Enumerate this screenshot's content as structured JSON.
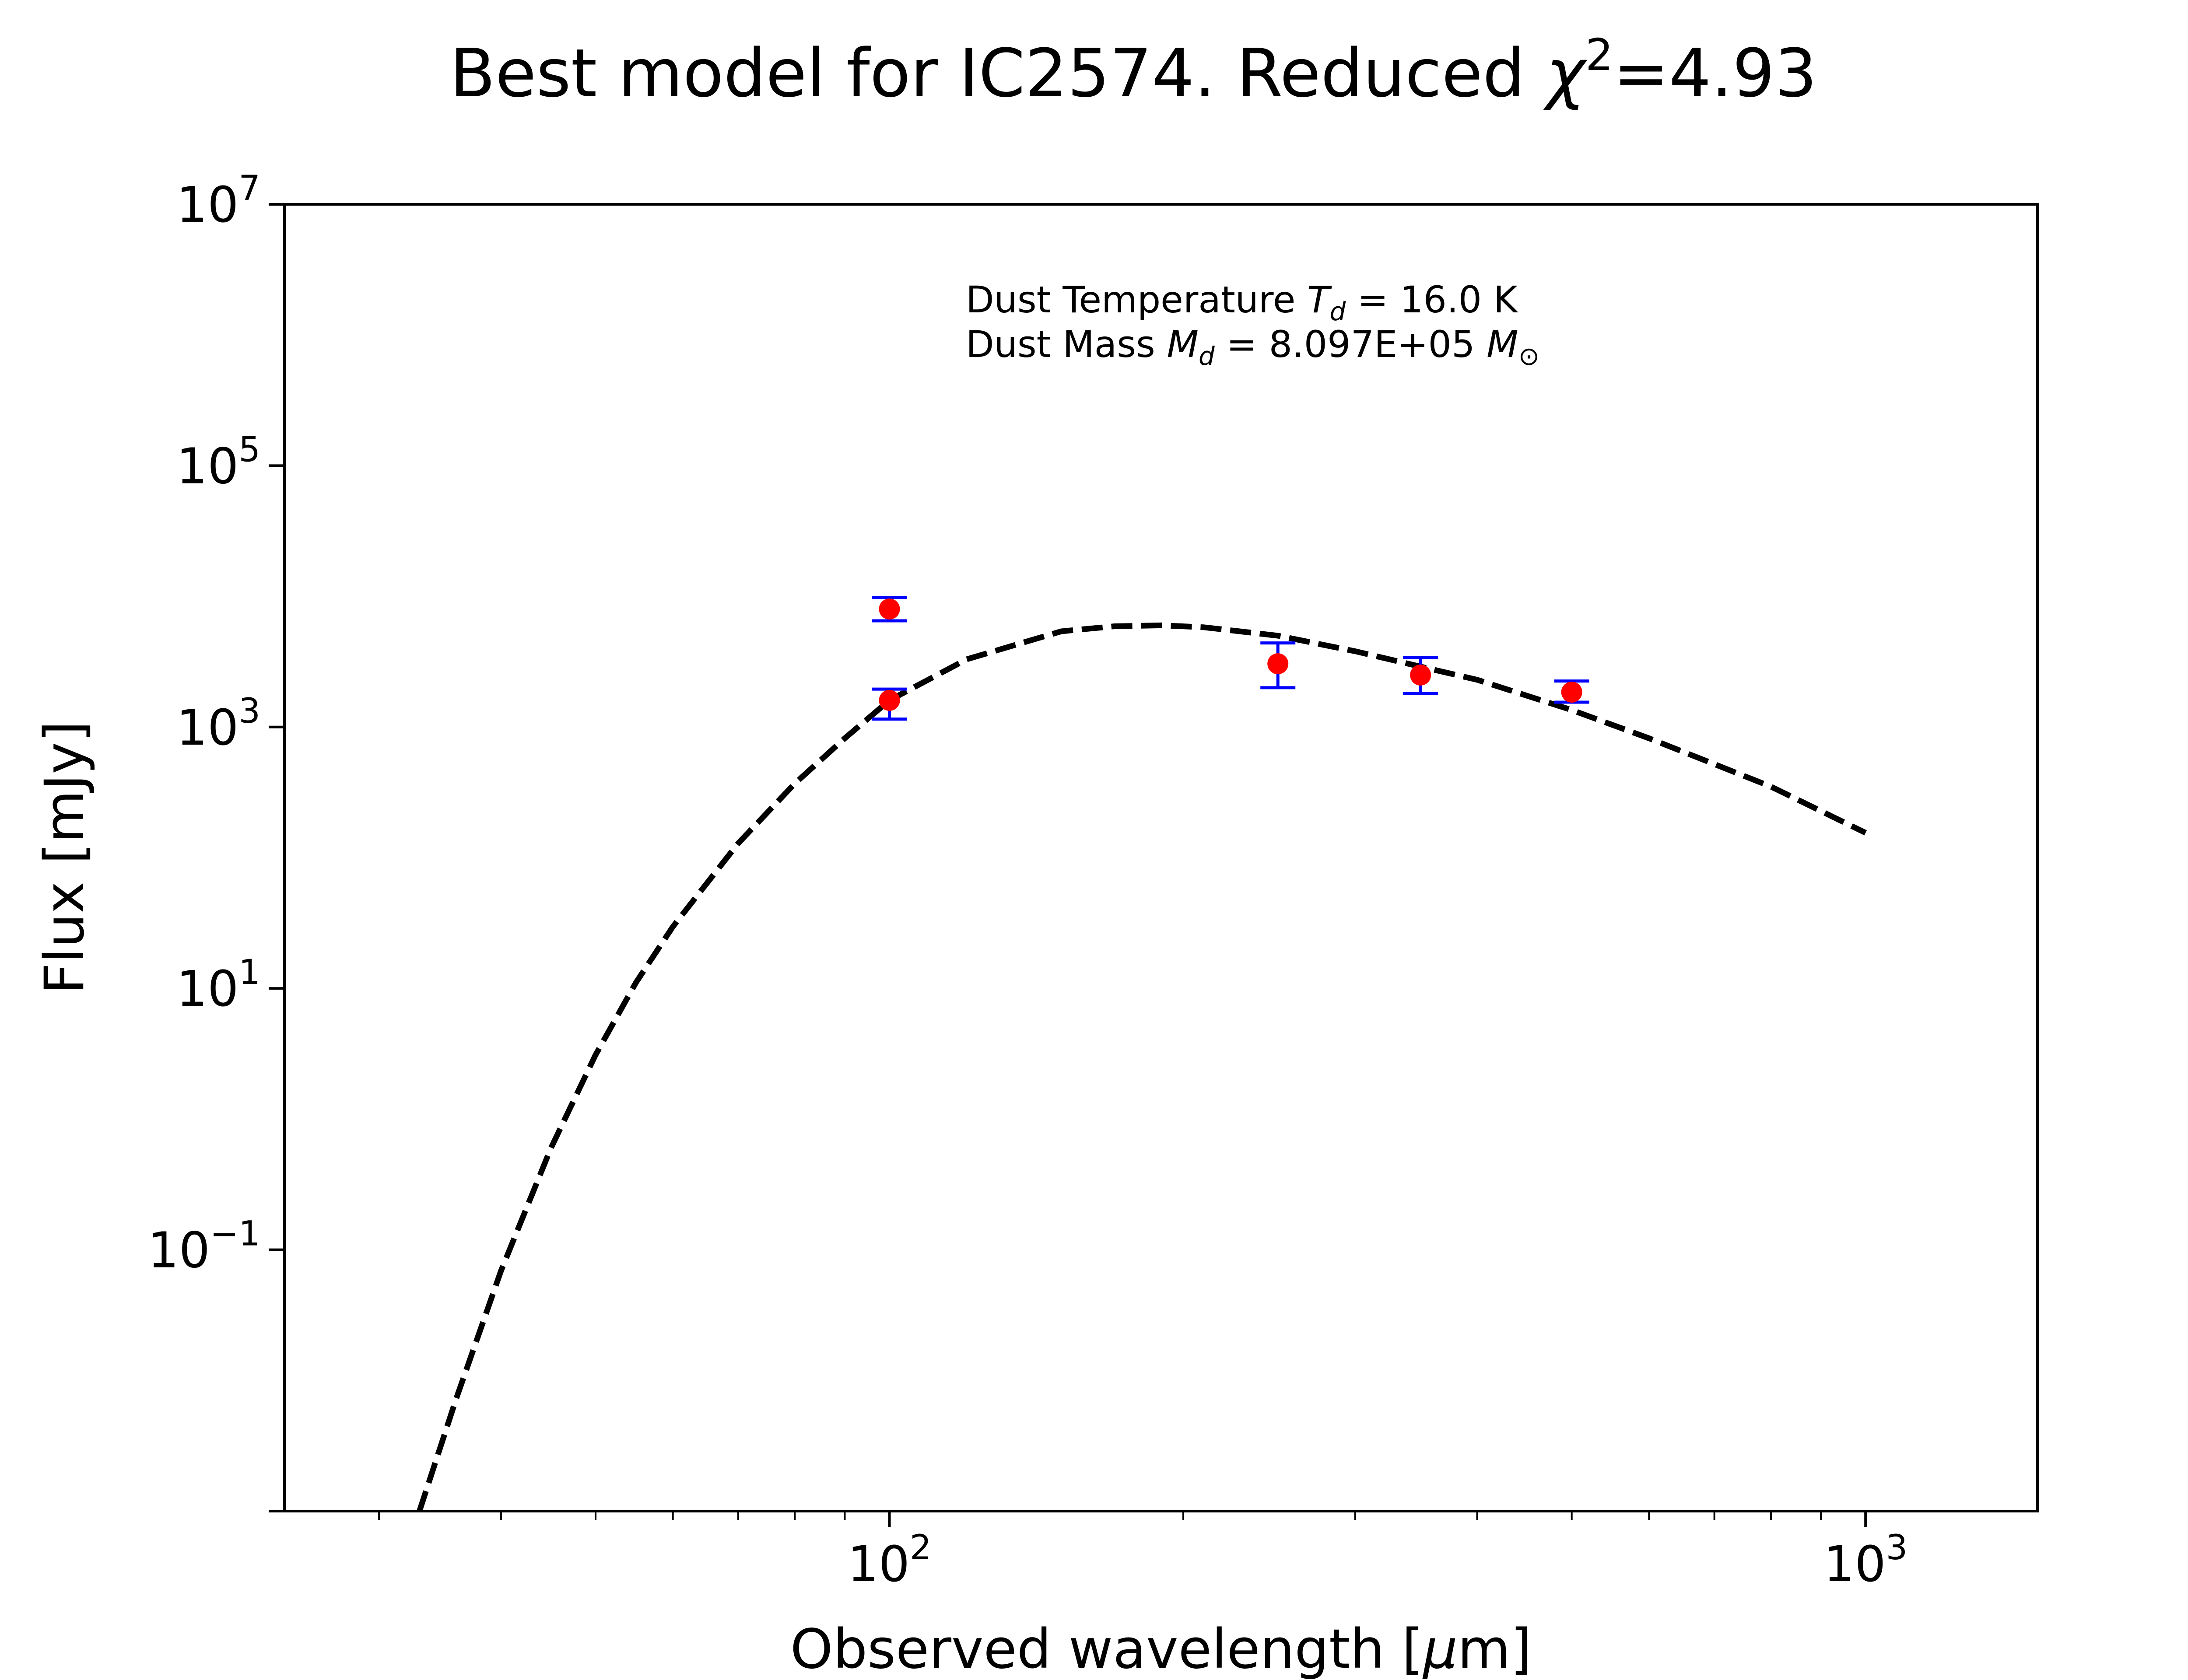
{
  "chart_data": {
    "type": "scatter",
    "title": "Best model for IC2574. Reduced",
    "title_symbol": "χ",
    "title_exponent": "2",
    "title_value": "=4.93",
    "xlabel_prefix": "Observed wavelength [",
    "xlabel_symbol": "μ",
    "xlabel_suffix": "m]",
    "ylabel": "Flux [mJy]",
    "xscale": "log",
    "yscale": "log",
    "xlim": [
      24,
      1500
    ],
    "ylim": [
      0.001,
      10000000
    ],
    "x_ticks": [
      {
        "value": 100,
        "base": "10",
        "exp": "2"
      },
      {
        "value": 1000,
        "base": "10",
        "exp": "3"
      }
    ],
    "y_ticks": [
      {
        "value": 10000000,
        "base": "10",
        "exp": "7"
      },
      {
        "value": 100000,
        "base": "10",
        "exp": "5"
      },
      {
        "value": 1000,
        "base": "10",
        "exp": "3"
      },
      {
        "value": 10,
        "base": "10",
        "exp": "1"
      },
      {
        "value": 0.1,
        "base": "10",
        "exp": "−1"
      }
    ],
    "annotation": {
      "line1_prefix": "Dust Temperature ",
      "line1_sym": "T",
      "line1_sub": "d",
      "line1_value": " = 16.0 K",
      "line2_prefix": "Dust Mass ",
      "line2_sym": "M",
      "line2_sub": "d",
      "line2_value": " = 8.097E+05 ",
      "line2_unit_sym": "M",
      "line2_unit_sub": "⊙"
    },
    "series": [
      {
        "style": "dashed-line",
        "color": "#000000",
        "x": [
          33,
          36,
          40,
          45,
          50,
          55,
          60,
          70,
          80,
          90,
          100,
          120,
          150,
          170,
          190,
          210,
          250,
          300,
          350,
          400,
          500,
          600,
          700,
          800,
          1000
        ],
        "y": [
          0.001,
          0.0073,
          0.069,
          0.6,
          3.1,
          11.1,
          29.7,
          129,
          370,
          820,
          1600,
          3300,
          5400,
          5900,
          6000,
          5800,
          5000,
          3800,
          2900,
          2300,
          1350,
          820,
          520,
          350,
          155
        ]
      },
      {
        "style": "points-with-errorbars",
        "marker_color": "#ff0000",
        "errorbar_color": "#0000ff",
        "points": [
          {
            "x": 100,
            "y": 8000,
            "yerr_low": 6500,
            "yerr_high": 9800
          },
          {
            "x": 100,
            "y": 1600,
            "yerr_low": 1150,
            "yerr_high": 1950
          },
          {
            "x": 250,
            "y": 3050,
            "yerr_low": 2000,
            "yerr_high": 4400
          },
          {
            "x": 350,
            "y": 2500,
            "yerr_low": 1800,
            "yerr_high": 3400
          },
          {
            "x": 500,
            "y": 1850,
            "yerr_low": 1550,
            "yerr_high": 2250
          }
        ]
      }
    ]
  }
}
